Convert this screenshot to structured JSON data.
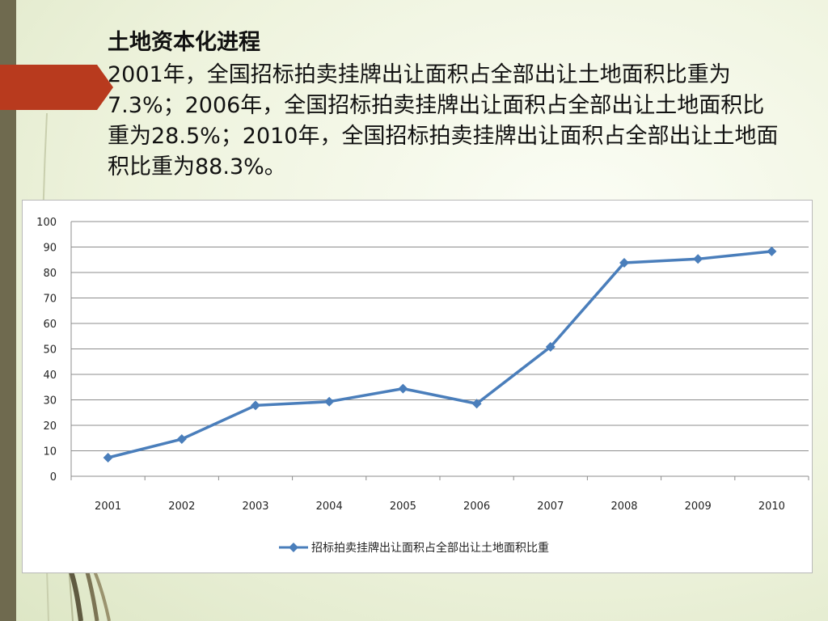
{
  "slide": {
    "title": "土地资本化进程",
    "paragraph": "2001年，全国招标拍卖挂牌出让面积占全部出让土地面积比重为7.3%；2006年，全国招标拍卖挂牌出让面积占全部出让土地面积比重为28.5%；2010年，全国招标拍卖挂牌出让面积占全部出让土地面积比重为88.3%。"
  },
  "colors": {
    "series": "#4a7ebb",
    "grid": "#8c8c8c",
    "accent_red": "#b83a1e",
    "sidebar": "#6f6a4f"
  },
  "chart_data": {
    "type": "line",
    "title": "",
    "xlabel": "",
    "ylabel": "",
    "categories": [
      "2001",
      "2002",
      "2003",
      "2004",
      "2005",
      "2006",
      "2007",
      "2008",
      "2009",
      "2010"
    ],
    "series": [
      {
        "name": "招标拍卖挂牌出让面积占全部出让土地面积比重",
        "values": [
          7.3,
          14.6,
          27.8,
          29.3,
          34.4,
          28.5,
          50.8,
          83.8,
          85.3,
          88.3
        ]
      }
    ],
    "ylim": [
      0,
      100
    ],
    "yticks": [
      0,
      10,
      20,
      30,
      40,
      50,
      60,
      70,
      80,
      90,
      100
    ],
    "grid": true,
    "legend_position": "bottom"
  }
}
